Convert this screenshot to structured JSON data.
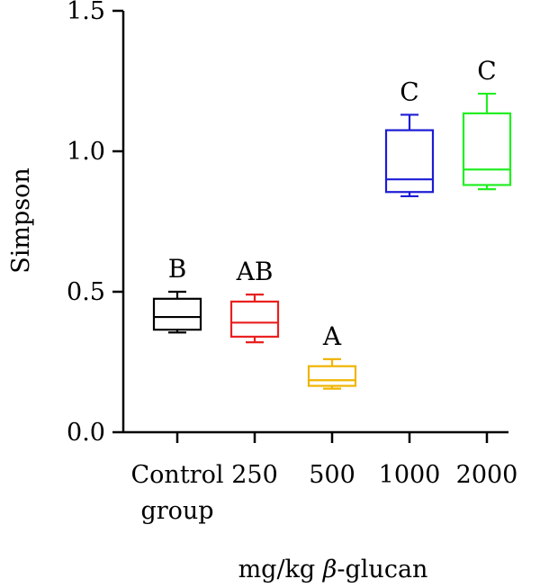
{
  "chart_data": {
    "type": "box",
    "xlabel": "mg/kg β-glucan",
    "ylabel": "Simpson",
    "ylim": [
      0.0,
      1.5
    ],
    "yticks": [
      "0.0",
      "0.5",
      "1.0",
      "1.5"
    ],
    "grid": false,
    "categories": [
      {
        "lines": [
          "Control",
          "group"
        ],
        "color": "#000000",
        "min": 0.355,
        "q1": 0.365,
        "median": 0.41,
        "q3": 0.475,
        "max": 0.5,
        "letter": "B"
      },
      {
        "lines": [
          "250"
        ],
        "color": "#e8201f",
        "min": 0.32,
        "q1": 0.34,
        "median": 0.39,
        "q3": 0.465,
        "max": 0.49,
        "letter": "AB"
      },
      {
        "lines": [
          "500"
        ],
        "color": "#f0b400",
        "min": 0.155,
        "q1": 0.165,
        "median": 0.185,
        "q3": 0.235,
        "max": 0.26,
        "letter": "A"
      },
      {
        "lines": [
          "1000"
        ],
        "color": "#1c1cd6",
        "min": 0.84,
        "q1": 0.855,
        "median": 0.9,
        "q3": 1.075,
        "max": 1.13,
        "letter": "C"
      },
      {
        "lines": [
          "2000"
        ],
        "color": "#22ee22",
        "min": 0.865,
        "q1": 0.88,
        "median": 0.935,
        "q3": 1.135,
        "max": 1.205,
        "letter": "C"
      }
    ]
  }
}
